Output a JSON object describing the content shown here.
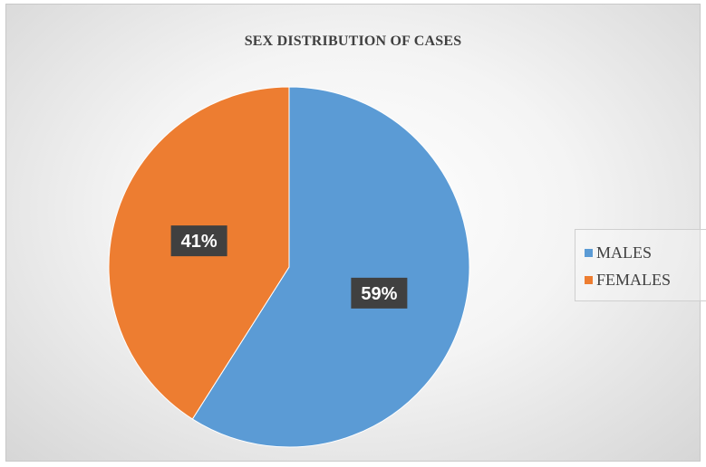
{
  "chart_data": {
    "type": "pie",
    "title": "SEX DISTRIBUTION OF CASES",
    "slices": [
      {
        "label": "MALES",
        "value": 59,
        "display": "59%",
        "color": "#5b9bd5"
      },
      {
        "label": "FEMALES",
        "value": 41,
        "display": "41%",
        "color": "#ed7d31"
      }
    ],
    "start_angle_deg": 0,
    "direction": "clockwise",
    "legend_position": "right",
    "data_label_style": "dark callout boxes",
    "colors": {
      "data_label_bg": "#404040",
      "title": "#404040",
      "legend_text": "#404040"
    }
  }
}
